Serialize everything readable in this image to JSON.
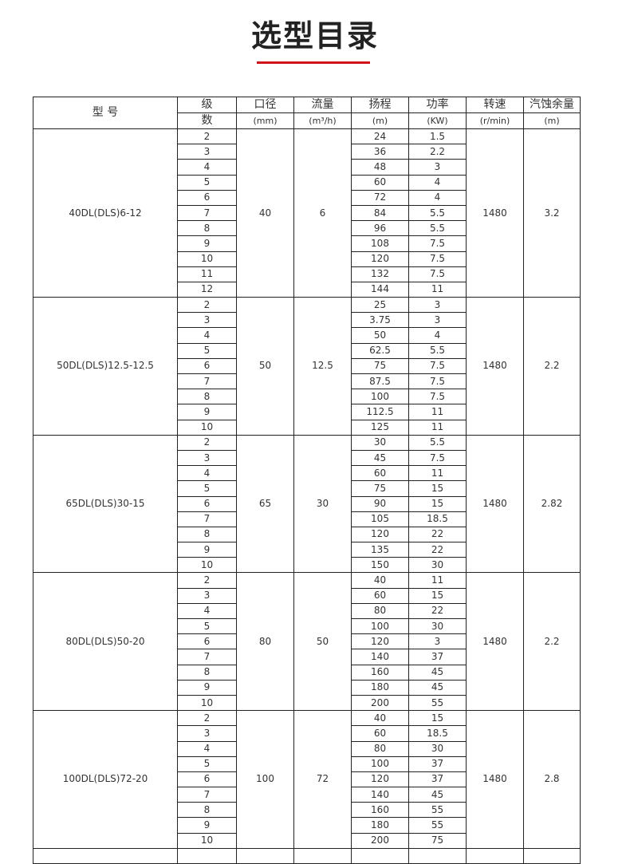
{
  "title": "选型目录",
  "accent_color": "#d0121b",
  "table": {
    "headers": [
      "型 号",
      "级",
      "口径",
      "流量",
      "扬程",
      "功率",
      "转速",
      "汽蚀余量"
    ],
    "units": [
      "数",
      "(mm)",
      "(m³/h)",
      "(m)",
      "(KW)",
      "(r/min)",
      "(m)"
    ],
    "groups": [
      {
        "model": "40DL(DLS)6-12",
        "diameter": "40",
        "flow": "6",
        "speed": "1480",
        "npsh": "3.2",
        "stages": [
          "2",
          "3",
          "4",
          "5",
          "6",
          "7",
          "8",
          "9",
          "10",
          "11",
          "12"
        ],
        "head": [
          "24",
          "36",
          "48",
          "60",
          "72",
          "84",
          "96",
          "108",
          "120",
          "132",
          "144"
        ],
        "power": [
          "1.5",
          "2.2",
          "3",
          "4",
          "4",
          "5.5",
          "5.5",
          "7.5",
          "7.5",
          "7.5",
          "11"
        ]
      },
      {
        "model": "50DL(DLS)12.5-12.5",
        "diameter": "50",
        "flow": "12.5",
        "speed": "1480",
        "npsh": "2.2",
        "stages": [
          "2",
          "3",
          "4",
          "5",
          "6",
          "7",
          "8",
          "9",
          "10"
        ],
        "head": [
          "25",
          "3.75",
          "50",
          "62.5",
          "75",
          "87.5",
          "100",
          "112.5",
          "125"
        ],
        "power": [
          "3",
          "3",
          "4",
          "5.5",
          "7.5",
          "7.5",
          "7.5",
          "11",
          "11"
        ]
      },
      {
        "model": "65DL(DLS)30-15",
        "diameter": "65",
        "flow": "30",
        "speed": "1480",
        "npsh": "2.82",
        "stages": [
          "2",
          "3",
          "4",
          "5",
          "6",
          "7",
          "8",
          "9",
          "10"
        ],
        "head": [
          "30",
          "45",
          "60",
          "75",
          "90",
          "105",
          "120",
          "135",
          "150"
        ],
        "power": [
          "5.5",
          "7.5",
          "11",
          "15",
          "15",
          "18.5",
          "22",
          "22",
          "30"
        ]
      },
      {
        "model": "80DL(DLS)50-20",
        "diameter": "80",
        "flow": "50",
        "speed": "1480",
        "npsh": "2.2",
        "stages": [
          "2",
          "3",
          "4",
          "5",
          "6",
          "7",
          "8",
          "9",
          "10"
        ],
        "head": [
          "40",
          "60",
          "80",
          "100",
          "120",
          "140",
          "160",
          "180",
          "200"
        ],
        "power": [
          "11",
          "15",
          "22",
          "30",
          "3",
          "37",
          "45",
          "45",
          "55"
        ]
      },
      {
        "model": "100DL(DLS)72-20",
        "diameter": "100",
        "flow": "72",
        "speed": "1480",
        "npsh": "2.8",
        "stages": [
          "2",
          "3",
          "4",
          "5",
          "6",
          "7",
          "8",
          "9",
          "10"
        ],
        "head": [
          "40",
          "60",
          "80",
          "100",
          "120",
          "140",
          "160",
          "180",
          "200"
        ],
        "power": [
          "15",
          "18.5",
          "30",
          "37",
          "37",
          "45",
          "55",
          "55",
          "75"
        ]
      }
    ]
  }
}
